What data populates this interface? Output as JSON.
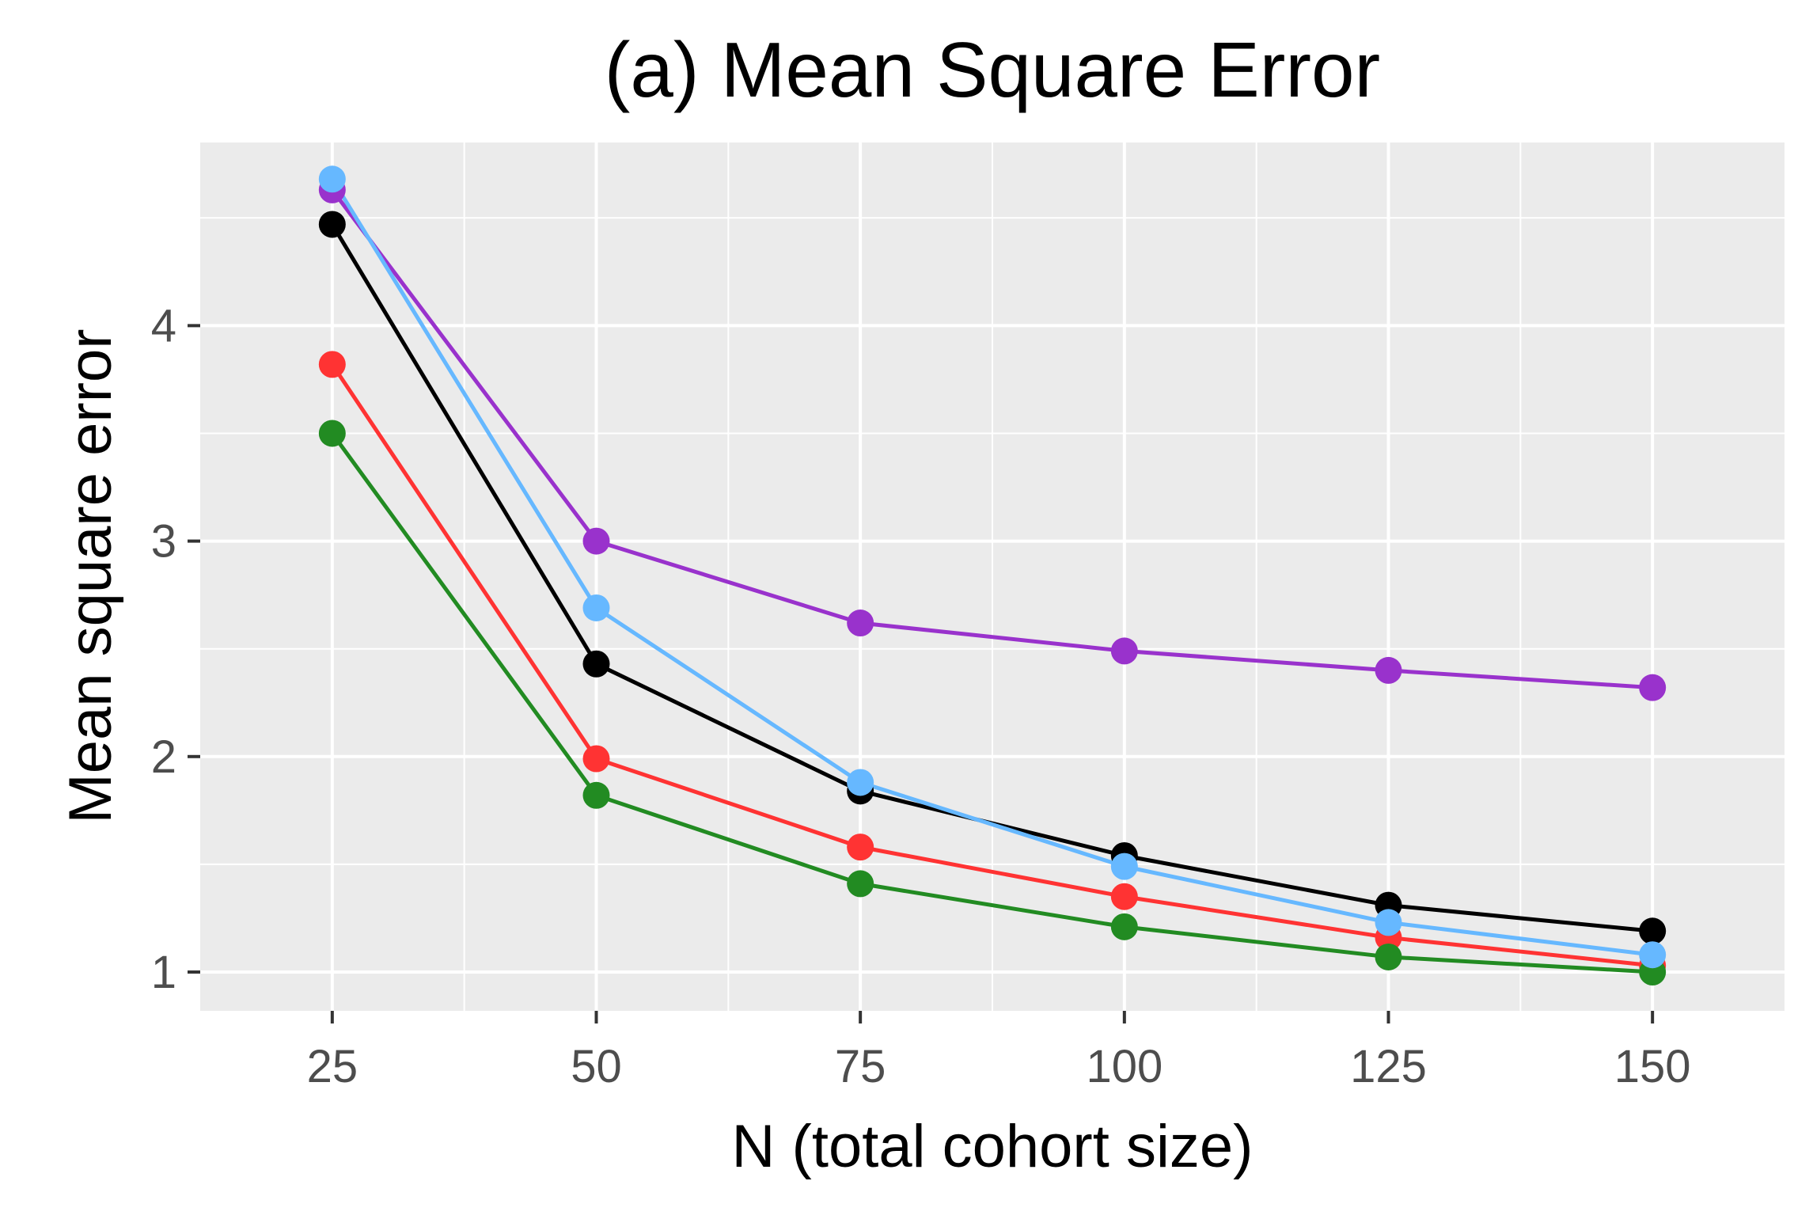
{
  "chart_data": {
    "type": "line",
    "title": "(a) Mean Square Error",
    "xlabel": "N (total cohort size)",
    "ylabel": "Mean square error",
    "x": [
      25,
      50,
      75,
      100,
      125,
      150
    ],
    "xlim": [
      12.5,
      162.5
    ],
    "ylim": [
      0.82,
      4.85
    ],
    "x_ticks": [
      25,
      50,
      75,
      100,
      125,
      150
    ],
    "y_ticks": [
      1,
      2,
      3,
      4
    ],
    "x_tick_labels": [
      "25",
      "50",
      "75",
      "100",
      "125",
      "150"
    ],
    "y_tick_labels": [
      "1",
      "2",
      "3",
      "4"
    ],
    "grid": true,
    "legend": "none",
    "series": [
      {
        "color": "#9932CC",
        "values": [
          4.63,
          3.0,
          2.62,
          2.49,
          2.4,
          2.32
        ]
      },
      {
        "color": "#000000",
        "values": [
          4.47,
          2.43,
          1.84,
          1.54,
          1.31,
          1.19
        ]
      },
      {
        "color": "#FF3333",
        "values": [
          3.82,
          1.99,
          1.58,
          1.35,
          1.16,
          1.03
        ]
      },
      {
        "color": "#228B22",
        "values": [
          3.5,
          1.82,
          1.41,
          1.21,
          1.07,
          1.0
        ]
      },
      {
        "color": "#66B8FF",
        "values": [
          4.68,
          2.69,
          1.88,
          1.49,
          1.23,
          1.08
        ]
      }
    ]
  }
}
